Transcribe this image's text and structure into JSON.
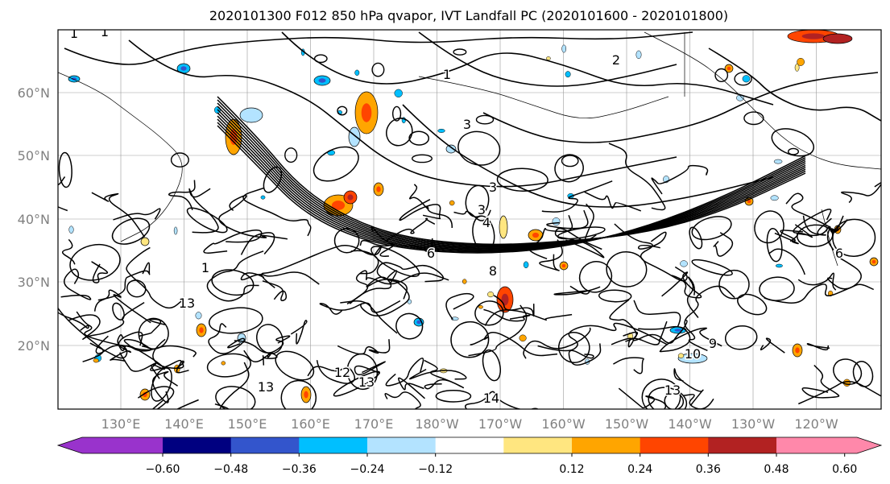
{
  "figure": {
    "title": "2020101300 F012 850 hPa qvapor, IVT Landfall PC (2020101600 - 2020101800)"
  },
  "map": {
    "lat_labels": [
      "60°N",
      "50°N",
      "40°N",
      "30°N",
      "20°N"
    ],
    "lon_labels": [
      "130°E",
      "140°E",
      "150°E",
      "160°E",
      "170°E",
      "180°W",
      "170°W",
      "160°W",
      "150°W",
      "140°W",
      "130°W",
      "120°W"
    ],
    "contour_labels": [
      "1",
      "1",
      "1",
      "2",
      "3",
      "3",
      "3",
      "4",
      "6",
      "8",
      "9",
      "1",
      "13",
      "13",
      "12",
      "13",
      "10",
      "6",
      "14",
      "13"
    ],
    "colors": {
      "line": "#000000",
      "grid": "#999999",
      "tick_label": "#808080"
    }
  },
  "colorbar": {
    "tick_labels": [
      "−0.60",
      "−0.48",
      "−0.36",
      "−0.24",
      "−0.12",
      "0.12",
      "0.24",
      "0.36",
      "0.48",
      "0.60"
    ],
    "colors": [
      "#9933cc",
      "#000080",
      "#3355cc",
      "#00bfff",
      "#b3e3ff",
      "#ffffff",
      "#ffe680",
      "#ffa500",
      "#ff4500",
      "#b22222",
      "#ff88aa"
    ]
  }
}
